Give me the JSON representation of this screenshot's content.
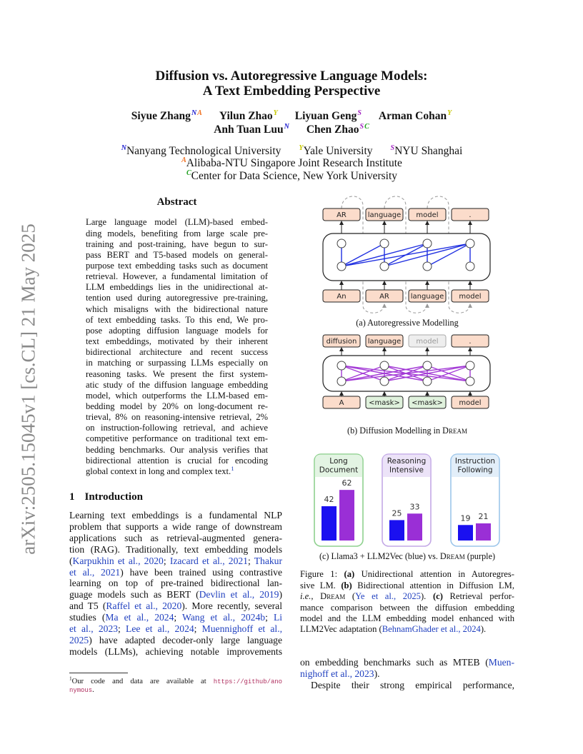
{
  "arxiv_stamp": "arXiv:2505.15045v1  [cs.CL]  21 May 2025",
  "header": {
    "title_lines": [
      "Diffusion vs. Autoregressive Language Models:",
      "A Text Embedding Perspective"
    ],
    "authors": [
      {
        "name": "Siyue Zhang",
        "marks": [
          "N",
          "A"
        ]
      },
      {
        "name": "Yilun Zhao",
        "marks": [
          "Y"
        ]
      },
      {
        "name": "Liyuan Geng",
        "marks": [
          "S"
        ]
      },
      {
        "name": "Arman Cohan",
        "marks": [
          "Y"
        ]
      },
      {
        "name": "Anh Tuan Luu",
        "marks": [
          "N"
        ]
      },
      {
        "name": "Chen Zhao",
        "marks": [
          "S",
          "C"
        ]
      }
    ],
    "affiliations": [
      {
        "mark": "N",
        "name": "Nanyang Technological University"
      },
      {
        "mark": "Y",
        "name": "Yale University"
      },
      {
        "mark": "S",
        "name": "NYU Shanghai"
      },
      {
        "mark": "A",
        "name": "Alibaba-NTU Singapore Joint Research Institute"
      },
      {
        "mark": "C",
        "name": "Center for Data Science, New York University"
      }
    ]
  },
  "abstract": {
    "heading": "Abstract",
    "lines": [
      "Large language model (LLM)-based embed-",
      "ding models, benefiting from large scale pre-",
      "training and post-training, have begun to sur-",
      "pass BERT and T5-based models on general-",
      "purpose text embedding tasks such as document",
      "retrieval. However, a fundamental limitation of",
      "LLM embeddings lies in the unidirectional at-",
      "tention used during autoregressive pre-training,",
      "which misaligns with the bidirectional nature",
      "of text embedding tasks. To this end, We pro-",
      "pose adopting diffusion language models for",
      "text embeddings, motivated by their inherent",
      "bidirectional architecture and recent success",
      "in matching or surpassing LLMs especially on",
      "reasoning tasks.  We present the first system-",
      "atic study of the diffusion language embedding",
      "model, which outperforms the LLM-based em-",
      "bedding model by 20% on long-document re-",
      "trieval, 8% on reasoning-intensive retrieval, 2%",
      "on instruction-following retrieval, and achieve",
      "competitive performance on traditional text em-",
      "bedding benchmarks. Our analysis verifies that",
      "bidirectional attention is crucial for encoding",
      [
        "global context in long and complex text.",
        {
          "text": "1",
          "s": "supcite"
        }
      ]
    ]
  },
  "introduction": {
    "number": "1",
    "heading": "Introduction",
    "lines": [
      "Learning text embeddings is a fundamental NLP",
      "problem that supports a wide range of downstream",
      "applications such as retrieval-augmented genera-",
      "tion (RAG). Traditionally, text embedding models",
      [
        "(",
        {
          "text": "Karpukhin et al., 2020",
          "s": "cite"
        },
        "; ",
        {
          "text": "Izacard et al., 2021",
          "s": "cite"
        },
        "; ",
        {
          "text": "Thakur",
          "s": "cite"
        }
      ],
      [
        {
          "text": "et al., 2021",
          "s": "cite"
        },
        ") have been trained using contrastive"
      ],
      "learning on top of pre-trained bidirectional lan-",
      [
        "guage models such as BERT (",
        {
          "text": "Devlin et al., 2019",
          "s": "cite"
        },
        ")"
      ],
      [
        "and T5 (",
        {
          "text": "Raffel et al., 2020",
          "s": "cite"
        },
        "). More recently, several"
      ],
      [
        "studies (",
        {
          "text": "Ma et al., 2024",
          "s": "cite"
        },
        "; ",
        {
          "text": "Wang et al., 2024b",
          "s": "cite"
        },
        "; ",
        {
          "text": "Li",
          "s": "cite"
        }
      ],
      [
        {
          "text": "et al., 2023",
          "s": "cite"
        },
        "; ",
        {
          "text": "Lee et al., 2024",
          "s": "cite"
        },
        "; ",
        {
          "text": "Muennighoff et al.,",
          "s": "cite"
        }
      ],
      [
        {
          "text": "2025",
          "s": "cite"
        },
        ") have adapted decoder-only large language"
      ],
      "models (LLMs), achieving notable improvements"
    ]
  },
  "footnote": [
    [
      {
        "text": "1",
        "s": "sup"
      },
      "Our code and data are available at ",
      {
        "text": "https://github/ano",
        "s": "mono"
      }
    ],
    [
      {
        "text": "nymous",
        "s": "mono"
      },
      "."
    ]
  ],
  "figure": {
    "a": {
      "top": [
        {
          "label": "AR"
        },
        {
          "label": "language"
        },
        {
          "label": "model"
        },
        {
          "label": "."
        }
      ],
      "bottom": [
        {
          "label": "An"
        },
        {
          "label": "AR"
        },
        {
          "label": "language"
        },
        {
          "label": "model"
        }
      ],
      "caption": "(a) Autoregressive Modelling"
    },
    "b": {
      "top": [
        {
          "label": "diffusion"
        },
        {
          "label": "language"
        },
        {
          "label": "model",
          "style": "muted"
        },
        {
          "label": "."
        }
      ],
      "bottom": [
        {
          "label": "A"
        },
        {
          "label": "<mask>",
          "style": "mask"
        },
        {
          "label": "<mask>",
          "style": "mask"
        },
        {
          "label": "model"
        }
      ],
      "caption": [
        "(b) Diffusion Modelling in ",
        {
          "text": "Dream",
          "s": "sc"
        }
      ]
    },
    "c": {
      "series_colors": [
        "#1a10f0",
        "#9a2fd6"
      ],
      "panels": [
        {
          "title_lines": [
            "Long",
            "Document"
          ],
          "values": [
            42,
            62
          ],
          "color": "#8fd18f",
          "tint": "#e3f4e3"
        },
        {
          "title_lines": [
            "Reasoning",
            "Intensive"
          ],
          "values": [
            25,
            33
          ],
          "color": "#c3a8e6",
          "tint": "#ece3f8"
        },
        {
          "title_lines": [
            "Instruction",
            "Following"
          ],
          "values": [
            19,
            21
          ],
          "color": "#9cc6ea",
          "tint": "#e2eef9"
        }
      ],
      "caption": [
        "(c) Llama3 + LLM2Vec (blue) vs. ",
        {
          "text": "Dream",
          "s": "sc"
        },
        " (purple)"
      ]
    }
  },
  "figure_caption": [
    [
      "Figure 1: ",
      {
        "text": "(a)",
        "s": "b"
      },
      " Unidirectional attention in Autoregres-"
    ],
    [
      "sive LM. ",
      {
        "text": "(b)",
        "s": "b"
      },
      " Bidirectional attention in Diffusion LM,"
    ],
    [
      {
        "text": "i.e.,",
        "s": "i"
      },
      " ",
      {
        "text": "Dream",
        "s": "sc"
      },
      " (",
      {
        "text": "Ye et al., 2025",
        "s": "cite"
      },
      ").  ",
      {
        "text": "(c)",
        "s": "b"
      },
      " Retrieval perfor-"
    ],
    "mance comparison between the diffusion embedding",
    "model and the LLM embedding model enhanced with",
    [
      "LLM2Vec adaptation (",
      {
        "text": "BehnamGhader et al., 2024",
        "s": "cite"
      },
      ")."
    ]
  ],
  "right_text": [
    [
      "on embedding benchmarks such as MTEB (",
      {
        "text": "Muen-",
        "s": "cite"
      }
    ],
    [
      {
        "text": "nighoff et al., 2023",
        "s": "cite"
      },
      ")."
    ],
    "Despite their strong empirical performance,"
  ]
}
